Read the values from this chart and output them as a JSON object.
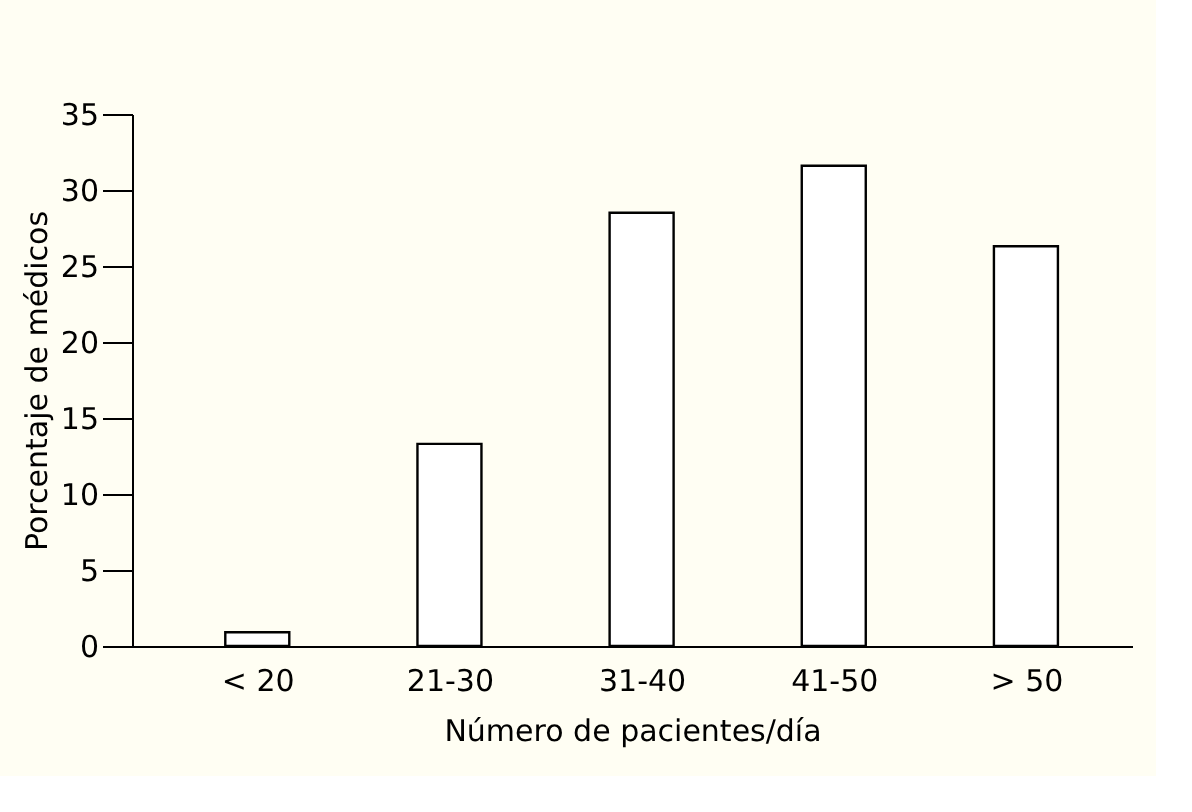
{
  "chart_data": {
    "type": "bar",
    "xlabel": "Número de pacientes/día",
    "ylabel": "Porcentaje de médicos",
    "categories": [
      "< 20",
      "21-30",
      "31-40",
      "41-50",
      "> 50"
    ],
    "values": [
      0.9,
      13.3,
      28.5,
      31.6,
      26.3
    ],
    "color": "#ffffff",
    "ylim": [
      0,
      35
    ],
    "yticks": [
      0,
      5,
      10,
      15,
      20,
      25,
      30,
      35
    ],
    "grid": false
  }
}
